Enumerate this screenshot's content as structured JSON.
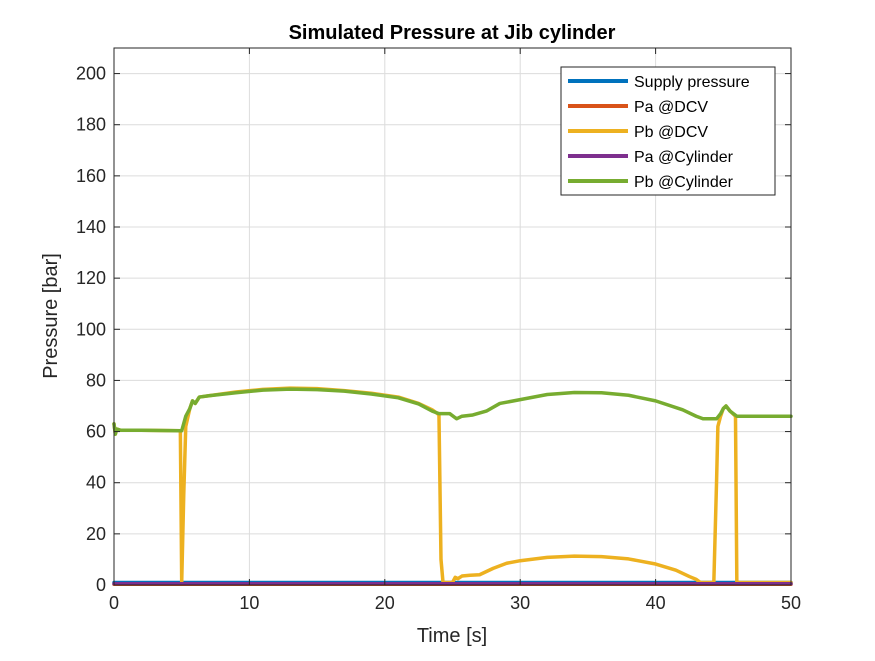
{
  "chart_data": {
    "type": "line",
    "title": "Simulated Pressure at Jib cylinder",
    "xlabel": "Time [s]",
    "ylabel": "Pressure [bar]",
    "xlim": [
      0,
      50
    ],
    "ylim": [
      0,
      210
    ],
    "xticks": [
      0,
      10,
      20,
      30,
      40,
      50
    ],
    "yticks": [
      0,
      20,
      40,
      60,
      80,
      100,
      120,
      140,
      160,
      180,
      200
    ],
    "grid": true,
    "legend_position": "top-right",
    "series": [
      {
        "name": "Supply pressure",
        "color": "#0072BD",
        "points": [
          [
            0,
            1
          ],
          [
            50,
            1
          ]
        ]
      },
      {
        "name": "Pa @DCV",
        "color": "#D95319",
        "points": [
          [
            0,
            0.3
          ],
          [
            50,
            0.3
          ]
        ]
      },
      {
        "name": "Pb @DCV",
        "color": "#EDB120",
        "points": [
          [
            0,
            63
          ],
          [
            0.1,
            59
          ],
          [
            0.2,
            61
          ],
          [
            0.5,
            60.5
          ],
          [
            2,
            60.5
          ],
          [
            4.9,
            60.3
          ],
          [
            5.0,
            1
          ],
          [
            5.15,
            35
          ],
          [
            5.3,
            62
          ],
          [
            5.6,
            69
          ],
          [
            5.8,
            72
          ],
          [
            6.0,
            71
          ],
          [
            6.3,
            73.5
          ],
          [
            7,
            74
          ],
          [
            9,
            75.5
          ],
          [
            11,
            76.5
          ],
          [
            13,
            77
          ],
          [
            15,
            76.8
          ],
          [
            17,
            76
          ],
          [
            19,
            75
          ],
          [
            21,
            73.5
          ],
          [
            22.5,
            71
          ],
          [
            23.5,
            68.5
          ],
          [
            23.9,
            67
          ],
          [
            24.0,
            66.5
          ],
          [
            24.15,
            10
          ],
          [
            24.3,
            1
          ],
          [
            25.0,
            1
          ],
          [
            25.2,
            3
          ],
          [
            25.4,
            2.5
          ],
          [
            25.7,
            3.5
          ],
          [
            26.3,
            3.8
          ],
          [
            27,
            4
          ],
          [
            28,
            6.5
          ],
          [
            29,
            8.5
          ],
          [
            30,
            9.5
          ],
          [
            32,
            10.8
          ],
          [
            34,
            11.3
          ],
          [
            36,
            11.1
          ],
          [
            38,
            10.2
          ],
          [
            40,
            8.2
          ],
          [
            41.5,
            5.8
          ],
          [
            42.5,
            3.3
          ],
          [
            43,
            2.2
          ],
          [
            43.3,
            1
          ],
          [
            44.3,
            1
          ],
          [
            44.5,
            40
          ],
          [
            44.6,
            62
          ],
          [
            44.8,
            66
          ],
          [
            45.0,
            69
          ],
          [
            45.2,
            70
          ],
          [
            45.5,
            68
          ],
          [
            45.9,
            66
          ],
          [
            46.0,
            1
          ],
          [
            46.2,
            1
          ],
          [
            50,
            1
          ]
        ]
      },
      {
        "name": "Pa @Cylinder",
        "color": "#7E2F8E",
        "points": [
          [
            0,
            0.5
          ],
          [
            50,
            0.5
          ]
        ]
      },
      {
        "name": "Pb @Cylinder",
        "color": "#77AC30",
        "points": [
          [
            0,
            63
          ],
          [
            0.1,
            59
          ],
          [
            0.2,
            61
          ],
          [
            0.5,
            60.5
          ],
          [
            2,
            60.5
          ],
          [
            5.0,
            60.3
          ],
          [
            5.3,
            66
          ],
          [
            5.6,
            69
          ],
          [
            5.8,
            72
          ],
          [
            6.0,
            71
          ],
          [
            6.3,
            73.5
          ],
          [
            7,
            74
          ],
          [
            9,
            75.2
          ],
          [
            11,
            76.2
          ],
          [
            13,
            76.6
          ],
          [
            15,
            76.4
          ],
          [
            17,
            75.8
          ],
          [
            19,
            74.7
          ],
          [
            21,
            73.2
          ],
          [
            22.5,
            70.8
          ],
          [
            23.5,
            68
          ],
          [
            24,
            67
          ],
          [
            24.8,
            67
          ],
          [
            25.3,
            65
          ],
          [
            25.7,
            66
          ],
          [
            26.5,
            66.5
          ],
          [
            27.5,
            68
          ],
          [
            28.5,
            71
          ],
          [
            30,
            72.5
          ],
          [
            32,
            74.5
          ],
          [
            34,
            75.3
          ],
          [
            36,
            75.2
          ],
          [
            38,
            74.2
          ],
          [
            40,
            72
          ],
          [
            42,
            68.5
          ],
          [
            43,
            66
          ],
          [
            43.5,
            65
          ],
          [
            44,
            65
          ],
          [
            44.5,
            65
          ],
          [
            44.8,
            67
          ],
          [
            45.0,
            69
          ],
          [
            45.2,
            70
          ],
          [
            45.5,
            68
          ],
          [
            46,
            66
          ],
          [
            47,
            66
          ],
          [
            50,
            66
          ]
        ]
      }
    ]
  }
}
